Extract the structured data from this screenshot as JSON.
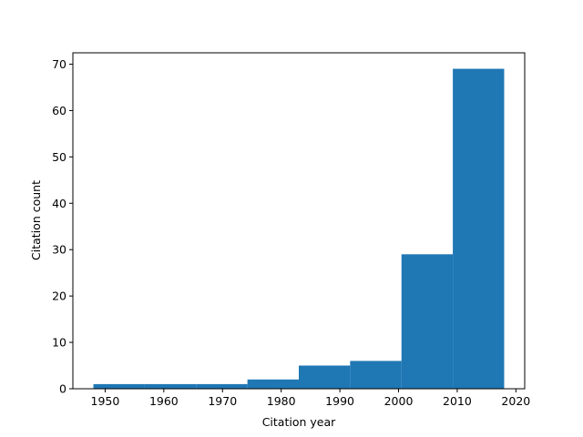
{
  "chart_data": {
    "type": "histogram",
    "xlabel": "Citation year",
    "ylabel": "Citation count",
    "bins": [
      1948,
      1956.75,
      1965.5,
      1974.25,
      1983,
      1991.75,
      2000.5,
      2009.25,
      2018
    ],
    "values": [
      1,
      1,
      1,
      2,
      5,
      6,
      29,
      69
    ],
    "color": "#1f77b4",
    "xlim": [
      1944.5,
      2021.5
    ],
    "ylim": [
      0,
      72.45
    ],
    "xticks": [
      1950,
      1960,
      1970,
      1980,
      1990,
      2000,
      2010,
      2020
    ],
    "yticks": [
      0,
      10,
      20,
      30,
      40,
      50,
      60,
      70
    ],
    "grid": false
  }
}
